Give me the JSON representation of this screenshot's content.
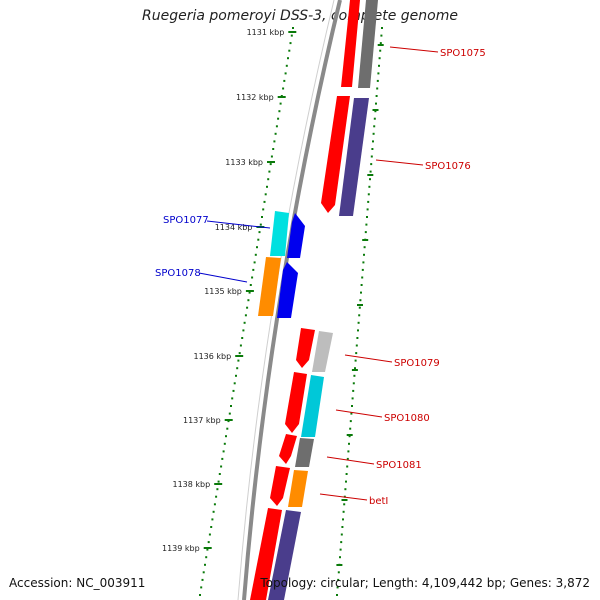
{
  "title": "Ruegeria pomeroyi DSS-3, complete genome",
  "accession": "Accession: NC_003911",
  "topology": "Topology: circular; Length: 4,109,442 bp; Genes: 3,872",
  "colors": {
    "tick": "#0a7a0a",
    "label_red": "#cc0000",
    "label_blue": "#0000cc",
    "backbone": "#888888"
  },
  "ticks": [
    "1131 kbp",
    "1132 kbp",
    "1133 kbp",
    "1134 kbp",
    "1135 kbp",
    "1136 kbp",
    "1137 kbp",
    "1138 kbp",
    "1139 kbp"
  ],
  "genes": [
    {
      "name": "SPO1075",
      "color": "red"
    },
    {
      "name": "SPO1076",
      "color": "red"
    },
    {
      "name": "SPO1077",
      "color": "blue"
    },
    {
      "name": "SPO1078",
      "color": "blue"
    },
    {
      "name": "SPO1079",
      "color": "red"
    },
    {
      "name": "SPO1080",
      "color": "red"
    },
    {
      "name": "SPO1081",
      "color": "red"
    },
    {
      "name": "betI",
      "color": "red"
    }
  ]
}
